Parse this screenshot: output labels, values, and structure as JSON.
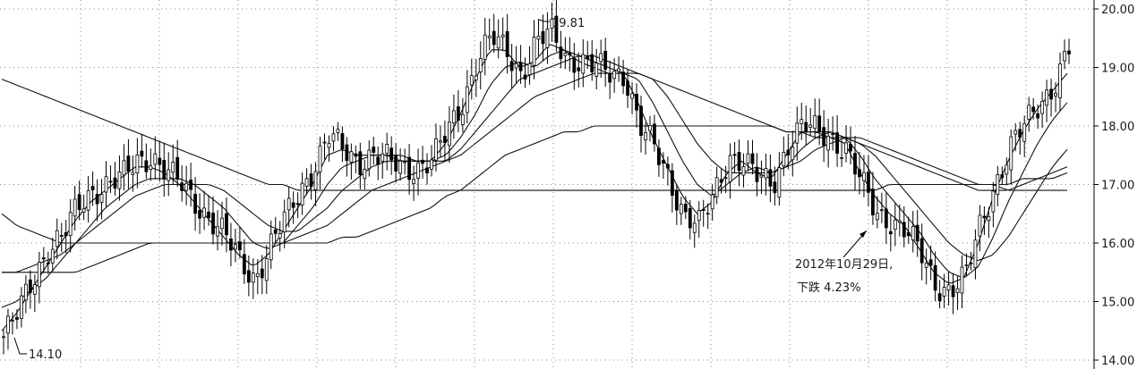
{
  "chart_data": {
    "type": "candlestick",
    "y_axis": {
      "position": "right",
      "range": [
        14.0,
        20.0
      ],
      "ticks": [
        14.0,
        15.0,
        16.0,
        17.0,
        18.0,
        19.0,
        20.0
      ],
      "tick_labels": [
        "14.00",
        "15.00",
        "16.00",
        "17.00",
        "18.00",
        "19.00",
        "20.00"
      ]
    },
    "grid": "dotted",
    "annotations": {
      "low_label": "14.10",
      "high_label": "19.81",
      "event_date": "2012年10月29日,",
      "event_change": "下跌 4.23%"
    },
    "close_approx": [
      14.4,
      14.8,
      15.4,
      15.9,
      16.1,
      16.6,
      16.9,
      17.0,
      17.1,
      17.4,
      17.5,
      17.2,
      17.0,
      16.7,
      16.4,
      16.1,
      15.7,
      15.4,
      15.9,
      16.4,
      16.9,
      17.3,
      17.8,
      17.6,
      17.4,
      17.5,
      17.4,
      17.3,
      17.3,
      17.4,
      17.9,
      18.4,
      19.1,
      19.5,
      19.3,
      18.9,
      19.4,
      19.6,
      19.2,
      19.1,
      19.0,
      18.9,
      18.9,
      18.0,
      17.6,
      17.1,
      16.5,
      16.3,
      16.8,
      17.5,
      17.4,
      17.1,
      17.0,
      17.7,
      18.0,
      17.9,
      17.8,
      17.6,
      17.0,
      16.5,
      16.4,
      16.2,
      15.8,
      15.3,
      15.2,
      15.4,
      16.3,
      17.0,
      17.6,
      18.0,
      18.4,
      18.7,
      19.3
    ],
    "series": [
      {
        "type": "moving_average",
        "values": [
          14.5,
          14.8,
          15.2,
          15.6,
          16.0,
          16.4,
          16.7,
          16.9,
          17.1,
          17.3,
          17.3,
          17.2,
          17.0,
          16.7,
          16.4,
          16.1,
          15.8,
          15.6,
          15.8,
          16.2,
          16.6,
          17.0,
          17.5,
          17.6,
          17.5,
          17.5,
          17.5,
          17.4,
          17.4,
          17.4,
          17.7,
          18.2,
          18.8,
          19.3,
          19.3,
          19.0,
          19.1,
          19.4,
          19.3,
          19.1,
          19.0,
          18.9,
          18.9,
          18.4,
          17.8,
          17.3,
          16.8,
          16.5,
          16.7,
          17.2,
          17.4,
          17.2,
          17.1,
          17.5,
          17.9,
          17.9,
          17.8,
          17.7,
          17.2,
          16.8,
          16.5,
          16.3,
          15.9,
          15.5,
          15.3,
          15.4,
          16.0,
          16.8,
          17.4,
          17.9,
          18.3,
          18.6,
          18.9
        ]
      },
      {
        "type": "moving_average",
        "values": [
          14.9,
          15.0,
          15.2,
          15.4,
          15.7,
          16.0,
          16.3,
          16.6,
          16.8,
          17.0,
          17.1,
          17.1,
          17.1,
          17.0,
          16.8,
          16.6,
          16.3,
          16.0,
          15.9,
          16.0,
          16.3,
          16.6,
          17.0,
          17.3,
          17.4,
          17.5,
          17.5,
          17.5,
          17.4,
          17.4,
          17.5,
          17.8,
          18.2,
          18.7,
          19.0,
          19.1,
          19.0,
          19.2,
          19.3,
          19.2,
          19.1,
          19.0,
          18.9,
          18.8,
          18.4,
          17.9,
          17.4,
          17.0,
          16.8,
          17.0,
          17.2,
          17.3,
          17.2,
          17.3,
          17.6,
          17.8,
          17.9,
          17.8,
          17.5,
          17.1,
          16.8,
          16.5,
          16.2,
          15.8,
          15.5,
          15.4,
          15.6,
          16.1,
          16.7,
          17.2,
          17.7,
          18.1,
          18.4
        ]
      },
      {
        "type": "moving_average",
        "values": [
          15.5,
          15.5,
          15.6,
          15.7,
          15.8,
          16.0,
          16.2,
          16.4,
          16.6,
          16.8,
          16.9,
          17.0,
          17.0,
          17.0,
          17.0,
          16.9,
          16.7,
          16.5,
          16.3,
          16.2,
          16.2,
          16.4,
          16.6,
          16.9,
          17.1,
          17.3,
          17.4,
          17.4,
          17.4,
          17.4,
          17.4,
          17.6,
          17.9,
          18.2,
          18.5,
          18.8,
          18.9,
          19.0,
          19.1,
          19.2,
          19.2,
          19.1,
          19.0,
          18.9,
          18.8,
          18.5,
          18.1,
          17.7,
          17.4,
          17.2,
          17.2,
          17.2,
          17.2,
          17.3,
          17.4,
          17.6,
          17.7,
          17.8,
          17.7,
          17.5,
          17.2,
          16.9,
          16.6,
          16.3,
          16.0,
          15.8,
          15.7,
          15.8,
          16.1,
          16.5,
          16.9,
          17.3,
          17.6
        ]
      },
      {
        "type": "moving_average",
        "values": [
          16.5,
          16.3,
          16.2,
          16.1,
          16.0,
          16.0,
          16.0,
          16.0,
          16.0,
          16.0,
          16.0,
          16.0,
          16.0,
          16.0,
          16.0,
          16.0,
          16.0,
          16.0,
          16.0,
          16.0,
          16.1,
          16.2,
          16.3,
          16.5,
          16.7,
          16.9,
          17.0,
          17.1,
          17.2,
          17.3,
          17.4,
          17.5,
          17.7,
          17.9,
          18.1,
          18.3,
          18.5,
          18.6,
          18.7,
          18.8,
          18.9,
          18.9,
          18.9,
          18.9,
          18.8,
          18.7,
          18.6,
          18.5,
          18.4,
          18.3,
          18.2,
          18.1,
          18.0,
          17.9,
          17.9,
          17.8,
          17.8,
          17.8,
          17.7,
          17.6,
          17.5,
          17.4,
          17.3,
          17.2,
          17.1,
          17.0,
          16.9,
          16.9,
          16.9,
          17.0,
          17.1,
          17.2,
          17.3
        ]
      },
      {
        "type": "moving_average",
        "values": [
          15.5,
          15.5,
          15.5,
          15.5,
          15.5,
          15.5,
          15.6,
          15.7,
          15.8,
          15.9,
          16.0,
          16.0,
          16.0,
          16.0,
          16.0,
          16.0,
          16.0,
          16.0,
          16.0,
          16.0,
          16.0,
          16.0,
          16.0,
          16.1,
          16.1,
          16.2,
          16.3,
          16.4,
          16.5,
          16.6,
          16.8,
          16.9,
          17.1,
          17.3,
          17.5,
          17.6,
          17.7,
          17.8,
          17.9,
          17.9,
          18.0,
          18.0,
          18.0,
          18.0,
          18.0,
          18.0,
          18.0,
          18.0,
          18.0,
          18.0,
          18.0,
          18.0,
          18.0,
          17.9,
          17.9,
          17.9,
          17.9,
          17.8,
          17.8,
          17.7,
          17.6,
          17.5,
          17.4,
          17.3,
          17.2,
          17.1,
          17.0,
          17.0,
          16.9,
          16.9,
          16.9,
          16.9,
          16.9
        ]
      },
      {
        "type": "moving_average",
        "values": [
          18.8,
          18.7,
          18.6,
          18.5,
          18.4,
          18.3,
          18.2,
          18.1,
          18.0,
          17.9,
          17.8,
          17.7,
          17.6,
          17.5,
          17.4,
          17.3,
          17.2,
          17.1,
          17.0,
          17.0,
          16.9,
          16.9,
          16.9,
          16.9,
          16.9,
          16.9,
          16.9,
          16.9,
          16.9,
          16.9,
          16.9,
          16.9,
          16.9,
          16.9,
          16.9,
          16.9,
          16.9,
          16.9,
          16.9,
          16.9,
          16.9,
          16.9,
          16.9,
          16.9,
          16.9,
          16.9,
          16.9,
          16.9,
          16.9,
          16.9,
          16.9,
          16.9,
          16.9,
          16.9,
          16.9,
          16.9,
          16.9,
          16.9,
          16.9,
          16.9,
          17.0,
          17.0,
          17.0,
          17.0,
          17.0,
          17.0,
          17.0,
          17.0,
          17.0,
          17.1,
          17.1,
          17.1,
          17.2
        ]
      }
    ]
  }
}
